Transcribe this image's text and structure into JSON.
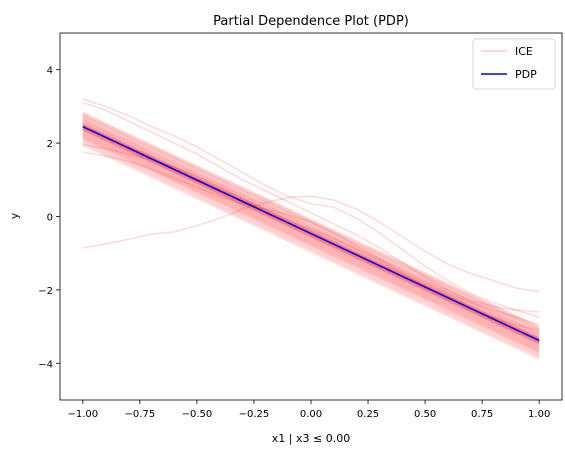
{
  "chart_data": {
    "type": "line",
    "title": "Partial Dependence Plot (PDP)",
    "xlabel": "x1 | x3 ≤ 0.00",
    "ylabel": "y",
    "xlim": [
      -1.1,
      1.1
    ],
    "ylim": [
      -5,
      5
    ],
    "x_ticks": [
      -1.0,
      -0.75,
      -0.5,
      -0.25,
      0.0,
      0.25,
      0.5,
      0.75,
      1.0
    ],
    "x_tick_labels": [
      "−1.00",
      "−0.75",
      "−0.50",
      "−0.25",
      "0.00",
      "0.25",
      "0.50",
      "0.75",
      "1.00"
    ],
    "y_ticks": [
      -4,
      -2,
      0,
      2,
      4
    ],
    "y_tick_labels": [
      "−4",
      "−2",
      "0",
      "2",
      "4"
    ],
    "grid": false,
    "legend_position": "top-right",
    "legend": [
      {
        "label": "ICE",
        "color": "#ff9999"
      },
      {
        "label": "PDP",
        "color": "#0000ff"
      }
    ],
    "series": [
      {
        "name": "PDP",
        "color": "#0000ff",
        "x": [
          -1.0,
          1.0
        ],
        "y": [
          2.45,
          -3.38
        ]
      }
    ],
    "ice_curves": {
      "color": "#ff0000",
      "opacity": 0.15,
      "x": [
        -1.0,
        -0.9,
        -0.8,
        -0.7,
        -0.6,
        -0.5,
        -0.4,
        -0.3,
        -0.2,
        -0.1,
        0.0,
        0.1,
        0.2,
        0.3,
        0.4,
        0.5,
        0.6,
        0.7,
        0.8,
        0.9,
        1.0
      ],
      "parallel_offsets": [
        -0.5,
        -0.45,
        -0.42,
        -0.38,
        -0.35,
        -0.32,
        -0.3,
        -0.28,
        -0.26,
        -0.24,
        -0.22,
        -0.2,
        -0.18,
        -0.16,
        -0.14,
        -0.12,
        -0.1,
        -0.09,
        -0.08,
        -0.07,
        -0.06,
        -0.05,
        -0.04,
        -0.03,
        -0.02,
        -0.01,
        0.0,
        0.01,
        0.02,
        0.03,
        0.04,
        0.05,
        0.06,
        0.07,
        0.08,
        0.1,
        0.12,
        0.14,
        0.16,
        0.18,
        0.2,
        0.22,
        0.25,
        0.28,
        0.3,
        0.32,
        0.35,
        0.38
      ],
      "irregular": [
        {
          "y": [
            -0.85,
            -0.75,
            -0.62,
            -0.48,
            -0.42,
            -0.25,
            -0.05,
            0.2,
            0.38,
            0.52,
            0.55,
            0.45,
            0.2,
            -0.15,
            -0.55,
            -0.95,
            -1.3,
            -1.55,
            -1.75,
            -1.95,
            -2.05
          ]
        },
        {
          "y": [
            3.2,
            3.0,
            2.75,
            2.45,
            2.2,
            1.9,
            1.55,
            1.2,
            0.85,
            0.55,
            0.35,
            0.25,
            -0.05,
            -0.45,
            -0.9,
            -1.35,
            -1.75,
            -2.1,
            -2.35,
            -2.55,
            -2.75
          ]
        },
        {
          "y": [
            1.75,
            1.65,
            1.5,
            1.3,
            1.05,
            0.8,
            0.55,
            0.35,
            0.2,
            0.05,
            -0.15,
            -0.45,
            -0.8,
            -1.15,
            -1.5,
            -1.8,
            -2.1,
            -2.35,
            -2.55,
            -2.75,
            -2.95
          ]
        },
        {
          "y": [
            3.1,
            2.9,
            2.6,
            2.3,
            2.0,
            1.7,
            1.35,
            1.0,
            0.7,
            0.4,
            0.1,
            -0.2,
            -0.5,
            -0.85,
            -1.25,
            -1.65,
            -2.0,
            -2.3,
            -2.45,
            -2.55,
            -2.6
          ]
        },
        {
          "y": [
            1.95,
            1.85,
            1.7,
            1.55,
            1.35,
            1.1,
            0.8,
            0.5,
            0.2,
            -0.1,
            -0.35,
            -0.6,
            -0.9,
            -1.2,
            -1.55,
            -1.9,
            -2.2,
            -2.5,
            -2.75,
            -2.95,
            -3.1
          ]
        }
      ]
    }
  }
}
